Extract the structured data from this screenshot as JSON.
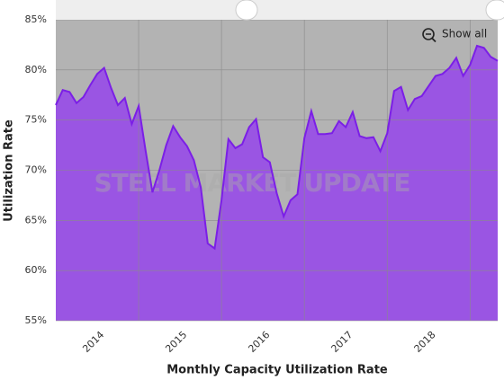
{
  "chart_data": {
    "type": "area",
    "title": "Monthly Capacity Utilization Rate",
    "y_label": "Utilization Rate",
    "watermark": "STEEL MARKET UPDATE",
    "button": "Show all",
    "color": "#9a55e3",
    "line_color": "#7b1fe6",
    "plot_background": "#b3b3b3",
    "grid": true,
    "x": [
      2013.5,
      2013.5833,
      2013.6667,
      2013.75,
      2013.8333,
      2013.9167,
      2014,
      2014.0833,
      2014.1667,
      2014.25,
      2014.3333,
      2014.4167,
      2014.5,
      2014.5833,
      2014.6667,
      2014.75,
      2014.8333,
      2014.9167,
      2015,
      2015.0833,
      2015.1667,
      2015.25,
      2015.3333,
      2015.4167,
      2015.5,
      2015.5833,
      2015.6667,
      2015.75,
      2015.8333,
      2015.9167,
      2016,
      2016.0833,
      2016.1667,
      2016.25,
      2016.3333,
      2016.4167,
      2016.5,
      2016.5833,
      2016.6667,
      2016.75,
      2016.8333,
      2016.9167,
      2017,
      2017.0833,
      2017.1667,
      2017.25,
      2017.3333,
      2017.4167,
      2017.5,
      2017.5833,
      2017.6667,
      2017.75,
      2017.8333,
      2017.9167,
      2018,
      2018.0833,
      2018.1667,
      2018.25,
      2018.3333,
      2018.4167,
      2018.5,
      2018.5833,
      2018.6667,
      2018.75,
      2018.8333
    ],
    "values": [
      76.5,
      78.0,
      77.8,
      76.7,
      77.3,
      78.5,
      79.6,
      80.2,
      78.2,
      76.5,
      77.2,
      74.6,
      76.4,
      72.0,
      67.8,
      70.0,
      72.5,
      74.4,
      73.3,
      72.4,
      71.0,
      68.3,
      62.7,
      62.2,
      67.0,
      73.1,
      72.2,
      72.6,
      74.3,
      75.1,
      71.3,
      70.8,
      67.7,
      65.4,
      67.0,
      67.6,
      73.2,
      75.9,
      73.6,
      73.6,
      73.7,
      74.9,
      74.3,
      75.8,
      73.4,
      73.2,
      73.3,
      71.9,
      73.7,
      77.9,
      78.3,
      76.0,
      77.1,
      77.4,
      78.4,
      79.4,
      79.6,
      80.2,
      81.2,
      79.4,
      80.5,
      82.4,
      82.2,
      81.3,
      80.9
    ],
    "xlim": [
      2013.5,
      2018.8333
    ],
    "xticks": [
      2014,
      2015,
      2016,
      2017,
      2018
    ],
    "ylim": [
      55,
      85
    ],
    "yticks": [
      {
        "value": 55,
        "label": "55%"
      },
      {
        "value": 60,
        "label": "60%"
      },
      {
        "value": 65,
        "label": "65%"
      },
      {
        "value": 70,
        "label": "70%"
      },
      {
        "value": 75,
        "label": "75%"
      },
      {
        "value": 80,
        "label": "80%"
      },
      {
        "value": 85,
        "label": "85%"
      }
    ]
  }
}
